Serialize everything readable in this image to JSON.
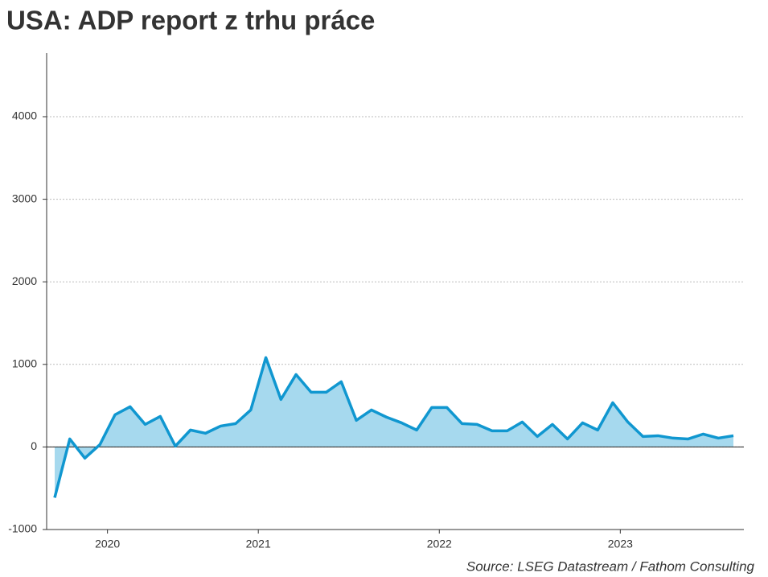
{
  "chart_data": {
    "type": "area",
    "title": "USA: ADP report z trhu práce",
    "source": "Source: LSEG Datastream / Fathom Consulting",
    "categories": [
      null,
      null,
      null,
      null,
      "2020",
      null,
      null,
      null,
      null,
      null,
      null,
      null,
      null,
      null,
      "2021",
      null,
      null,
      null,
      null,
      null,
      null,
      null,
      null,
      null,
      null,
      null,
      "2022",
      null,
      null,
      null,
      null,
      null,
      null,
      null,
      null,
      null,
      null,
      null,
      "2023",
      null,
      null,
      null,
      null,
      null,
      null,
      null
    ],
    "values": [
      -614,
      97,
      -136,
      29,
      390,
      487,
      273,
      370,
      10,
      205,
      166,
      253,
      283,
      448,
      1082,
      575,
      877,
      663,
      663,
      790,
      322,
      448,
      361,
      292,
      205,
      478,
      478,
      283,
      273,
      195,
      195,
      302,
      127,
      273,
      97,
      292,
      205,
      536,
      302,
      127,
      136,
      107,
      97,
      156,
      107,
      136
    ],
    "color": "#1097d0",
    "fill_color": "#a6d9ee",
    "ylim": [
      -1000,
      4770
    ],
    "yticks": [
      -1000,
      0,
      1000,
      2000,
      3000,
      4000
    ],
    "grid": true
  }
}
